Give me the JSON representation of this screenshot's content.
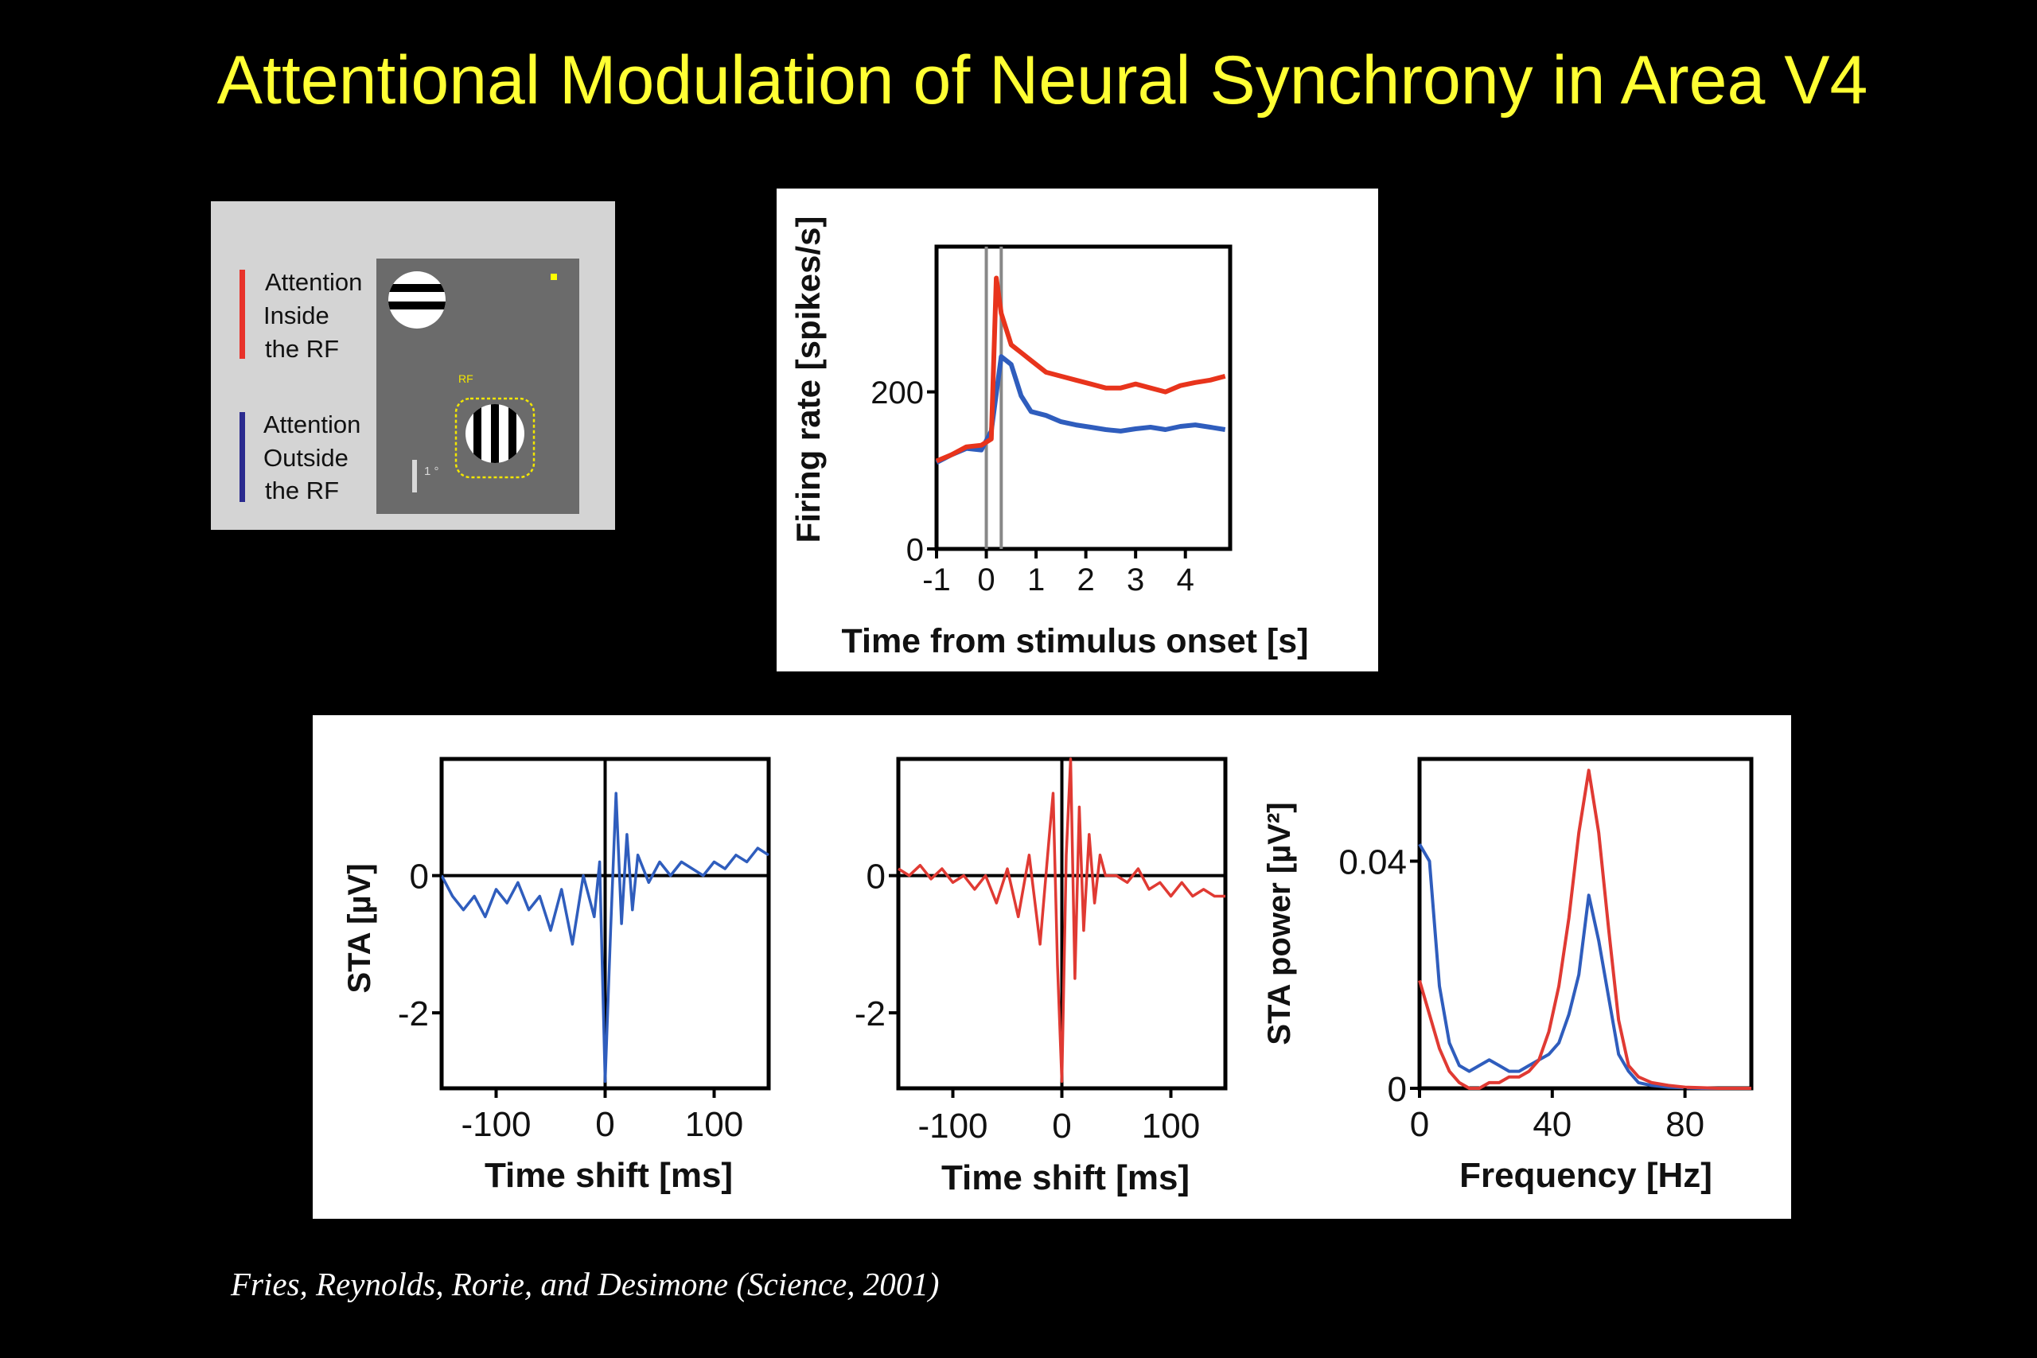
{
  "slide": {
    "title": "Attentional Modulation of Neural Synchrony in Area V4",
    "citation": "Fries, Reynolds, Rorie, and Desimone (Science, 2001)"
  },
  "stimulus_panel": {
    "legend": [
      {
        "lines": [
          "Attention",
          "Inside",
          "the RF"
        ],
        "color": "#e8322a"
      },
      {
        "lines": [
          "Attention",
          "Outside",
          "the RF"
        ],
        "color": "#2b2b8f"
      }
    ],
    "rf_label": "RF",
    "scale_label": "1 °",
    "fixation_color": "#ffff00",
    "screen_color": "#6b6b6b"
  },
  "chart_data": [
    {
      "type": "line",
      "xlabel": "Time from stimulus onset [s]",
      "ylabel": "Firing rate [spikes/s]",
      "xlim": [
        -1,
        4.9
      ],
      "ylim": [
        0,
        385
      ],
      "xticks": [
        -1,
        0,
        1,
        2,
        3,
        4
      ],
      "yticks": [
        0,
        200
      ],
      "vlines": [
        0,
        0.3
      ],
      "series": [
        {
          "color": "#2f5dbd",
          "x": [
            -1,
            -0.7,
            -0.4,
            -0.1,
            0.1,
            0.3,
            0.5,
            0.7,
            0.9,
            1.2,
            1.5,
            1.8,
            2.1,
            2.4,
            2.7,
            3.0,
            3.3,
            3.6,
            3.9,
            4.2,
            4.5,
            4.8
          ],
          "y": [
            110,
            120,
            128,
            126,
            150,
            245,
            235,
            195,
            175,
            170,
            162,
            158,
            155,
            152,
            150,
            153,
            155,
            152,
            156,
            158,
            155,
            152
          ]
        },
        {
          "color": "#e8341c",
          "x": [
            -1,
            -0.7,
            -0.4,
            -0.1,
            0.1,
            0.2,
            0.3,
            0.5,
            0.7,
            0.9,
            1.2,
            1.5,
            1.8,
            2.1,
            2.4,
            2.7,
            3.0,
            3.3,
            3.6,
            3.9,
            4.2,
            4.5,
            4.8
          ],
          "y": [
            112,
            120,
            130,
            132,
            140,
            345,
            300,
            260,
            250,
            240,
            225,
            220,
            215,
            210,
            205,
            205,
            210,
            205,
            200,
            208,
            212,
            215,
            220
          ]
        }
      ]
    },
    {
      "type": "line",
      "xlabel": "Time shift [ms]",
      "ylabel": "STA [µV]",
      "xlim": [
        -150,
        150
      ],
      "ylim": [
        -3.1,
        1.7
      ],
      "xticks": [
        -100,
        0,
        100
      ],
      "yticks": [
        0,
        -2
      ],
      "series": [
        {
          "color": "#2f5dbd",
          "x": [
            -150,
            -140,
            -130,
            -120,
            -110,
            -100,
            -90,
            -80,
            -70,
            -60,
            -50,
            -40,
            -30,
            -20,
            -10,
            -5,
            0,
            5,
            10,
            15,
            20,
            25,
            30,
            40,
            50,
            60,
            70,
            80,
            90,
            100,
            110,
            120,
            130,
            140,
            150
          ],
          "y": [
            0,
            -0.3,
            -0.5,
            -0.3,
            -0.6,
            -0.2,
            -0.4,
            -0.1,
            -0.5,
            -0.3,
            -0.8,
            -0.2,
            -1.0,
            0,
            -0.6,
            0.2,
            -3.0,
            -0.8,
            1.2,
            -0.7,
            0.6,
            -0.5,
            0.3,
            -0.1,
            0.2,
            0,
            0.2,
            0.1,
            0,
            0.2,
            0.1,
            0.3,
            0.2,
            0.4,
            0.3
          ]
        }
      ]
    },
    {
      "type": "line",
      "xlabel": "Time shift [ms]",
      "ylabel": "",
      "xlim": [
        -150,
        150
      ],
      "ylim": [
        -3.1,
        1.7
      ],
      "xticks": [
        -100,
        0,
        100
      ],
      "yticks": [
        0,
        -2
      ],
      "series": [
        {
          "color": "#e03a33",
          "x": [
            -150,
            -140,
            -130,
            -120,
            -110,
            -100,
            -90,
            -80,
            -70,
            -60,
            -50,
            -40,
            -30,
            -20,
            -12,
            -8,
            -4,
            0,
            4,
            8,
            12,
            16,
            20,
            25,
            30,
            35,
            40,
            50,
            60,
            70,
            80,
            90,
            100,
            110,
            120,
            130,
            140,
            150
          ],
          "y": [
            0.1,
            0,
            0.15,
            -0.05,
            0.1,
            -0.1,
            0,
            -0.2,
            0,
            -0.4,
            0.1,
            -0.6,
            0.3,
            -1.0,
            0.5,
            1.2,
            -1.3,
            -3.0,
            0.3,
            1.7,
            -1.5,
            1.0,
            -0.8,
            0.6,
            -0.4,
            0.3,
            0,
            0,
            -0.1,
            0.1,
            -0.2,
            -0.1,
            -0.3,
            -0.1,
            -0.3,
            -0.2,
            -0.3,
            -0.3
          ]
        }
      ]
    },
    {
      "type": "line",
      "xlabel": "Frequency [Hz]",
      "ylabel": "STA power [µV²]",
      "xlim": [
        0,
        100
      ],
      "ylim": [
        0,
        0.058
      ],
      "xticks": [
        0,
        40,
        80
      ],
      "yticks": [
        0,
        0.04
      ],
      "ytick_labels": [
        "0",
        "0.04"
      ],
      "series": [
        {
          "color": "#2f5dbd",
          "x": [
            0,
            3,
            6,
            9,
            12,
            15,
            18,
            21,
            24,
            27,
            30,
            33,
            36,
            39,
            42,
            45,
            48,
            51,
            54,
            57,
            60,
            63,
            66,
            70,
            75,
            80,
            85,
            90,
            95,
            100
          ],
          "y": [
            0.043,
            0.04,
            0.018,
            0.008,
            0.004,
            0.003,
            0.004,
            0.005,
            0.004,
            0.003,
            0.003,
            0.004,
            0.005,
            0.006,
            0.008,
            0.013,
            0.02,
            0.034,
            0.026,
            0.016,
            0.006,
            0.003,
            0.001,
            0.0005,
            0.0002,
            0.0001,
            0,
            0,
            0,
            0
          ]
        },
        {
          "color": "#e03a33",
          "x": [
            0,
            3,
            6,
            9,
            12,
            15,
            18,
            21,
            24,
            27,
            30,
            33,
            36,
            39,
            42,
            45,
            48,
            51,
            54,
            57,
            60,
            63,
            66,
            70,
            75,
            80,
            85,
            90,
            95,
            100
          ],
          "y": [
            0.019,
            0.013,
            0.007,
            0.003,
            0.001,
            0,
            0,
            0.001,
            0.001,
            0.002,
            0.002,
            0.003,
            0.005,
            0.01,
            0.018,
            0.03,
            0.045,
            0.056,
            0.045,
            0.028,
            0.012,
            0.004,
            0.002,
            0.001,
            0.0005,
            0.0002,
            0.0001,
            0,
            0,
            0
          ]
        }
      ]
    }
  ]
}
